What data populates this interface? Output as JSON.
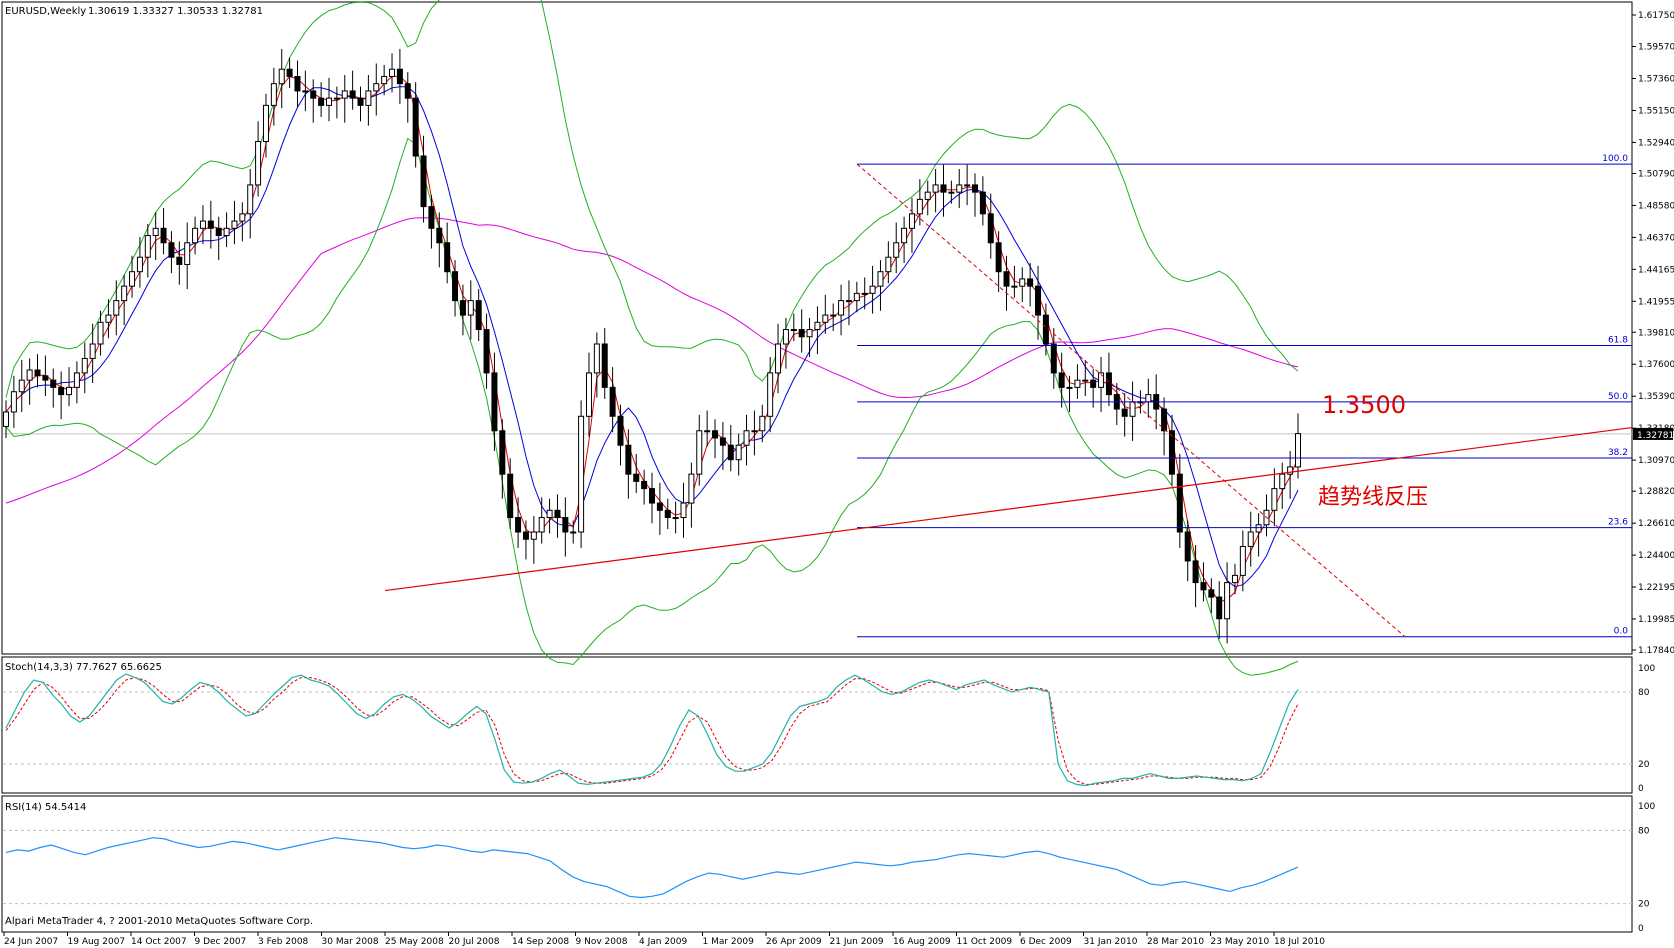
{
  "header": {
    "symbol": "EURUSD,Weekly",
    "ohlc": "1.30619 1.33327 1.30533 1.32781"
  },
  "colors": {
    "bollinger": "#22b022",
    "ma_fast": "#e00000",
    "ma_slow": "#0000e0",
    "ma_long": "#e000e0",
    "fib": "#0000cc",
    "trendline": "#e00000",
    "stoch_main": "#20b2aa",
    "stoch_signal": "#e00000",
    "rsi": "#1e90ff"
  },
  "chart_data": {
    "type": "line",
    "title": "EURUSD,Weekly",
    "y_ticks": [
      "1.61750",
      "1.59570",
      "1.57360",
      "1.55150",
      "1.52940",
      "1.50790",
      "1.48580",
      "1.46370",
      "1.44165",
      "1.41955",
      "1.39810",
      "1.37600",
      "1.35390",
      "1.33180",
      "1.30970",
      "1.28820",
      "1.26610",
      "1.24400",
      "1.22195",
      "1.19985",
      "1.17840"
    ],
    "current_price": "1.32781",
    "ylim": [
      1.1784,
      1.6175
    ],
    "x_labels": [
      "24 Jun 2007",
      "19 Aug 2007",
      "14 Oct 2007",
      "9 Dec 2007",
      "3 Feb 2008",
      "30 Mar 2008",
      "25 May 2008",
      "20 Jul 2008",
      "14 Sep 2008",
      "9 Nov 2008",
      "4 Jan 2009",
      "1 Mar 2009",
      "26 Apr 2009",
      "21 Jun 2009",
      "16 Aug 2009",
      "11 Oct 2009",
      "6 Dec 2009",
      "31 Jan 2010",
      "28 Mar 2010",
      "23 May 2010",
      "18 Jul 2010"
    ],
    "fib_levels": [
      {
        "label": "100.0",
        "price": 1.5144
      },
      {
        "label": "61.8",
        "price": 1.389
      },
      {
        "label": "50.0",
        "price": 1.35
      },
      {
        "label": "38.2",
        "price": 1.3112
      },
      {
        "label": "23.6",
        "price": 1.263
      },
      {
        "label": "0.0",
        "price": 1.1876
      }
    ],
    "annotations": [
      "1.3500",
      "趋势线反压"
    ],
    "close_series": [
      1.343,
      1.357,
      1.365,
      1.372,
      1.368,
      1.365,
      1.36,
      1.355,
      1.36,
      1.37,
      1.38,
      1.39,
      1.405,
      1.41,
      1.42,
      1.43,
      1.44,
      1.45,
      1.465,
      1.47,
      1.46,
      1.45,
      1.445,
      1.46,
      1.47,
      1.475,
      1.47,
      1.465,
      1.47,
      1.475,
      1.48,
      1.5,
      1.53,
      1.555,
      1.57,
      1.58,
      1.575,
      1.565,
      1.565,
      1.56,
      1.555,
      1.56,
      1.56,
      1.565,
      1.56,
      1.555,
      1.565,
      1.57,
      1.575,
      1.58,
      1.57,
      1.56,
      1.52,
      1.485,
      1.47,
      1.46,
      1.44,
      1.42,
      1.41,
      1.42,
      1.4,
      1.37,
      1.33,
      1.3,
      1.27,
      1.26,
      1.255,
      1.26,
      1.27,
      1.275,
      1.27,
      1.26,
      1.26,
      1.34,
      1.37,
      1.39,
      1.36,
      1.34,
      1.32,
      1.3,
      1.295,
      1.29,
      1.28,
      1.275,
      1.27,
      1.27,
      1.28,
      1.3,
      1.33,
      1.33,
      1.325,
      1.32,
      1.31,
      1.32,
      1.33,
      1.33,
      1.34,
      1.37,
      1.39,
      1.4,
      1.4,
      1.395,
      1.4,
      1.405,
      1.41,
      1.41,
      1.42,
      1.42,
      1.425,
      1.425,
      1.43,
      1.44,
      1.45,
      1.46,
      1.47,
      1.48,
      1.49,
      1.495,
      1.5,
      1.495,
      1.495,
      1.5,
      1.5,
      1.495,
      1.48,
      1.46,
      1.44,
      1.43,
      1.43,
      1.435,
      1.43,
      1.41,
      1.39,
      1.37,
      1.36,
      1.36,
      1.365,
      1.365,
      1.36,
      1.37,
      1.355,
      1.345,
      1.34,
      1.35,
      1.35,
      1.355,
      1.345,
      1.33,
      1.3,
      1.26,
      1.24,
      1.225,
      1.22,
      1.215,
      1.2,
      1.225,
      1.23,
      1.25,
      1.26,
      1.265,
      1.275,
      1.29,
      1.3,
      1.305,
      1.328
    ],
    "stoch_series": [
      50,
      65,
      80,
      90,
      88,
      78,
      70,
      60,
      55,
      60,
      70,
      80,
      90,
      95,
      92,
      88,
      80,
      72,
      70,
      75,
      82,
      88,
      86,
      80,
      72,
      66,
      60,
      62,
      70,
      78,
      85,
      92,
      94,
      90,
      88,
      85,
      78,
      70,
      62,
      58,
      62,
      70,
      76,
      78,
      74,
      68,
      60,
      55,
      50,
      55,
      62,
      68,
      62,
      40,
      15,
      5,
      4,
      5,
      8,
      12,
      15,
      10,
      4,
      3,
      4,
      5,
      6,
      7,
      8,
      9,
      12,
      20,
      35,
      52,
      65,
      60,
      45,
      28,
      18,
      14,
      14,
      17,
      20,
      30,
      45,
      60,
      68,
      70,
      72,
      75,
      84,
      90,
      94,
      90,
      85,
      80,
      78,
      80,
      84,
      88,
      90,
      88,
      85,
      82,
      86,
      88,
      90,
      86,
      83,
      80,
      82,
      84,
      82,
      80,
      20,
      6,
      3,
      2,
      4,
      5,
      6,
      8,
      8,
      10,
      12,
      10,
      8,
      8,
      9,
      10,
      9,
      8,
      7,
      7,
      6,
      8,
      12,
      30,
      50,
      70,
      82
    ],
    "stoch_signal": [
      48,
      58,
      70,
      82,
      88,
      84,
      76,
      66,
      58,
      58,
      64,
      72,
      82,
      90,
      92,
      90,
      85,
      78,
      72,
      72,
      78,
      84,
      86,
      84,
      78,
      70,
      64,
      62,
      66,
      74,
      80,
      88,
      92,
      92,
      90,
      87,
      82,
      75,
      67,
      61,
      60,
      65,
      72,
      76,
      76,
      71,
      65,
      58,
      53,
      52,
      57,
      63,
      65,
      52,
      28,
      12,
      6,
      5,
      6,
      9,
      12,
      12,
      8,
      5,
      4,
      4,
      5,
      6,
      7,
      8,
      10,
      15,
      25,
      40,
      55,
      60,
      55,
      40,
      26,
      18,
      15,
      15,
      17,
      23,
      35,
      50,
      62,
      68,
      70,
      72,
      79,
      86,
      91,
      91,
      88,
      84,
      80,
      79,
      82,
      85,
      88,
      88,
      86,
      84,
      84,
      86,
      88,
      88,
      85,
      82,
      82,
      83,
      83,
      81,
      40,
      15,
      6,
      3,
      3,
      4,
      5,
      6,
      7,
      8,
      10,
      10,
      9,
      8,
      8,
      9,
      9,
      9,
      8,
      8,
      7,
      7,
      9,
      18,
      35,
      55,
      70
    ],
    "rsi_series": [
      62,
      64,
      63,
      66,
      68,
      65,
      62,
      60,
      63,
      66,
      68,
      70,
      72,
      74,
      73,
      70,
      68,
      66,
      67,
      69,
      71,
      70,
      68,
      66,
      64,
      66,
      68,
      70,
      72,
      74,
      73,
      72,
      71,
      70,
      68,
      66,
      65,
      66,
      68,
      67,
      65,
      63,
      62,
      64,
      63,
      62,
      61,
      58,
      55,
      48,
      42,
      38,
      36,
      34,
      30,
      26,
      25,
      26,
      28,
      33,
      38,
      42,
      45,
      44,
      42,
      40,
      42,
      44,
      46,
      45,
      44,
      46,
      48,
      50,
      52,
      54,
      53,
      52,
      51,
      52,
      54,
      55,
      56,
      58,
      60,
      61,
      60,
      59,
      58,
      60,
      62,
      63,
      61,
      58,
      56,
      54,
      52,
      50,
      48,
      44,
      40,
      36,
      35,
      37,
      38,
      36,
      34,
      32,
      30,
      33,
      35,
      38,
      42,
      46,
      50
    ],
    "stoch_ticks": [
      "100",
      "80",
      "20",
      "0"
    ],
    "rsi_ticks": [
      "100",
      "80",
      "20",
      "0"
    ]
  },
  "indicators": {
    "stoch_label": "Stoch(14,3,3) 77.7627 65.6625",
    "rsi_label": "RSI(14) 54.5414"
  },
  "footer": {
    "copyright": "Alpari MetaTrader 4, ? 2001-2010 MetaQuotes Software Corp."
  }
}
